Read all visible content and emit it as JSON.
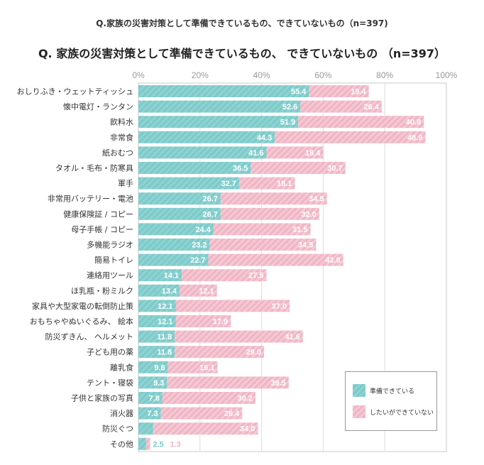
{
  "page_caption": "Q.家族の災害対策として準備できているもの、できていないもの（n=397)",
  "chart_data": {
    "type": "bar",
    "orientation": "horizontal",
    "stacked": true,
    "title": "Q. 家族の災害対策として準備できているもの、 できていないもの （n=397）",
    "xlim": [
      0,
      100
    ],
    "x_ticks": [
      "0%",
      "20%",
      "40%",
      "60%",
      "80%",
      "100%"
    ],
    "grid": true,
    "legend_position": "bottom-right",
    "categories": [
      "おしりふき・ウェットティッシュ",
      "懐中電灯・ランタン",
      "飲料水",
      "非常食",
      "紙おむつ",
      "タオル・毛布・防寒具",
      "軍手",
      "非常用バッテリー・電池",
      "健康保険証 / コピー",
      "母子手帳 / コピー",
      "多機能ラジオ",
      "簡易トイレ",
      "連絡用ツール",
      "ほ乳瓶・粉ミルク",
      "家具や大型家電の転倒防止策",
      "おもちゃやぬいぐるみ、 絵本",
      "防災ずきん、 ヘルメット",
      "子ども用の薬",
      "離乳食",
      "テント・寝袋",
      "子供と家族の写真",
      "消火器",
      "防災ぐつ",
      "その他"
    ],
    "series": [
      {
        "name": "準備できている",
        "color": "#7ccac9",
        "values": [
          55.4,
          52.6,
          51.9,
          44.3,
          41.6,
          36.5,
          32.7,
          26.7,
          26.7,
          24.4,
          23.2,
          22.7,
          14.1,
          13.4,
          12.1,
          12.1,
          11.8,
          11.8,
          9.6,
          9.3,
          7.8,
          7.3,
          4.8,
          2.5
        ],
        "labels": [
          "55.4",
          "52.6",
          "51.9",
          "44.3",
          "41.6",
          "36.5",
          "32.7",
          "26.7",
          "26.7",
          "24.4",
          "23.2",
          "22.7",
          "14.1",
          "13.4",
          "12.1",
          "12.1",
          "11.8",
          "11.8",
          "9.6",
          "9.3",
          "7.8",
          "7.3",
          "4.8",
          "2.5"
        ]
      },
      {
        "name": "したいができていない",
        "color": "#f0b8c6",
        "values": [
          19.4,
          26.4,
          40.8,
          48.9,
          18.4,
          30.7,
          18.1,
          34.5,
          32.0,
          31.5,
          34.5,
          43.8,
          27.5,
          12.1,
          37.0,
          17.9,
          41.6,
          29.0,
          16.1,
          39.5,
          30.2,
          26.4,
          34.0,
          1.3
        ],
        "labels": [
          "19.4",
          "26.4",
          "40.8",
          "48.9",
          "18.4",
          "30.7",
          "18.1",
          "34.5",
          "32.0",
          "31.5",
          "34.5",
          "43.8",
          "27.5",
          "12.1",
          "37.0",
          "17.9",
          "41.6",
          "29.0",
          "16.1",
          "39.5",
          "30.2",
          "26.4",
          "34.0",
          "1.3"
        ]
      }
    ]
  }
}
